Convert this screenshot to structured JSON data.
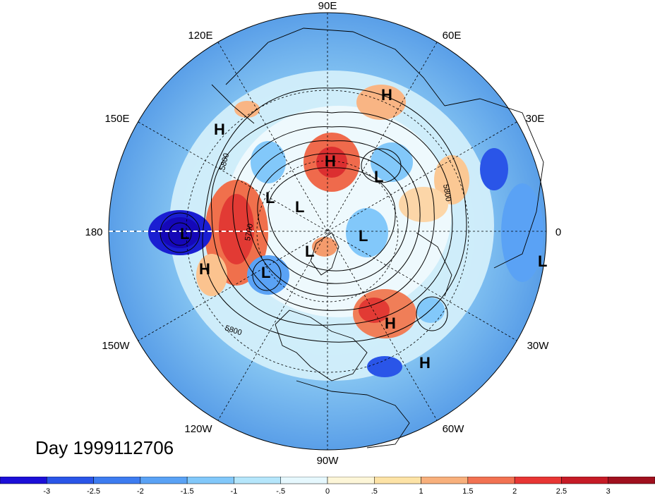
{
  "map": {
    "projection": "north-polar-stereographic",
    "longitude_labels": [
      "90E",
      "60E",
      "30E",
      "0",
      "30W",
      "60W",
      "90W",
      "120W",
      "150W",
      "180",
      "150E",
      "120E"
    ],
    "contour_labels": [
      "5800",
      "5800",
      "5700",
      "5800"
    ],
    "pressure_centers": [
      {
        "type": "H",
        "label": "H"
      },
      {
        "type": "H",
        "label": "H"
      },
      {
        "type": "H",
        "label": "H"
      },
      {
        "type": "H",
        "label": "H"
      },
      {
        "type": "H",
        "label": "H"
      },
      {
        "type": "H",
        "label": "H"
      },
      {
        "type": "L",
        "label": "L"
      },
      {
        "type": "L",
        "label": "L"
      },
      {
        "type": "L",
        "label": "L"
      },
      {
        "type": "L",
        "label": "L"
      },
      {
        "type": "L",
        "label": "L"
      },
      {
        "type": "L",
        "label": "L"
      },
      {
        "type": "L",
        "label": "L"
      }
    ]
  },
  "title": "Day 1999112706",
  "colorbar": {
    "tick_labels": [
      "-3",
      "-2.5",
      "-2",
      "-1.5",
      "-1",
      "-.5",
      "0",
      ".5",
      "1",
      "1.5",
      "2",
      "2.5",
      "3"
    ],
    "colors": [
      "#1c0fd8",
      "#2a55e8",
      "#3d7cf0",
      "#5aa2f5",
      "#82c8fa",
      "#b5e6fb",
      "#e6f8fe",
      "#fdf6d8",
      "#fde3a6",
      "#f8b07c",
      "#f27252",
      "#e83634",
      "#c61b26",
      "#a0101e"
    ]
  }
}
